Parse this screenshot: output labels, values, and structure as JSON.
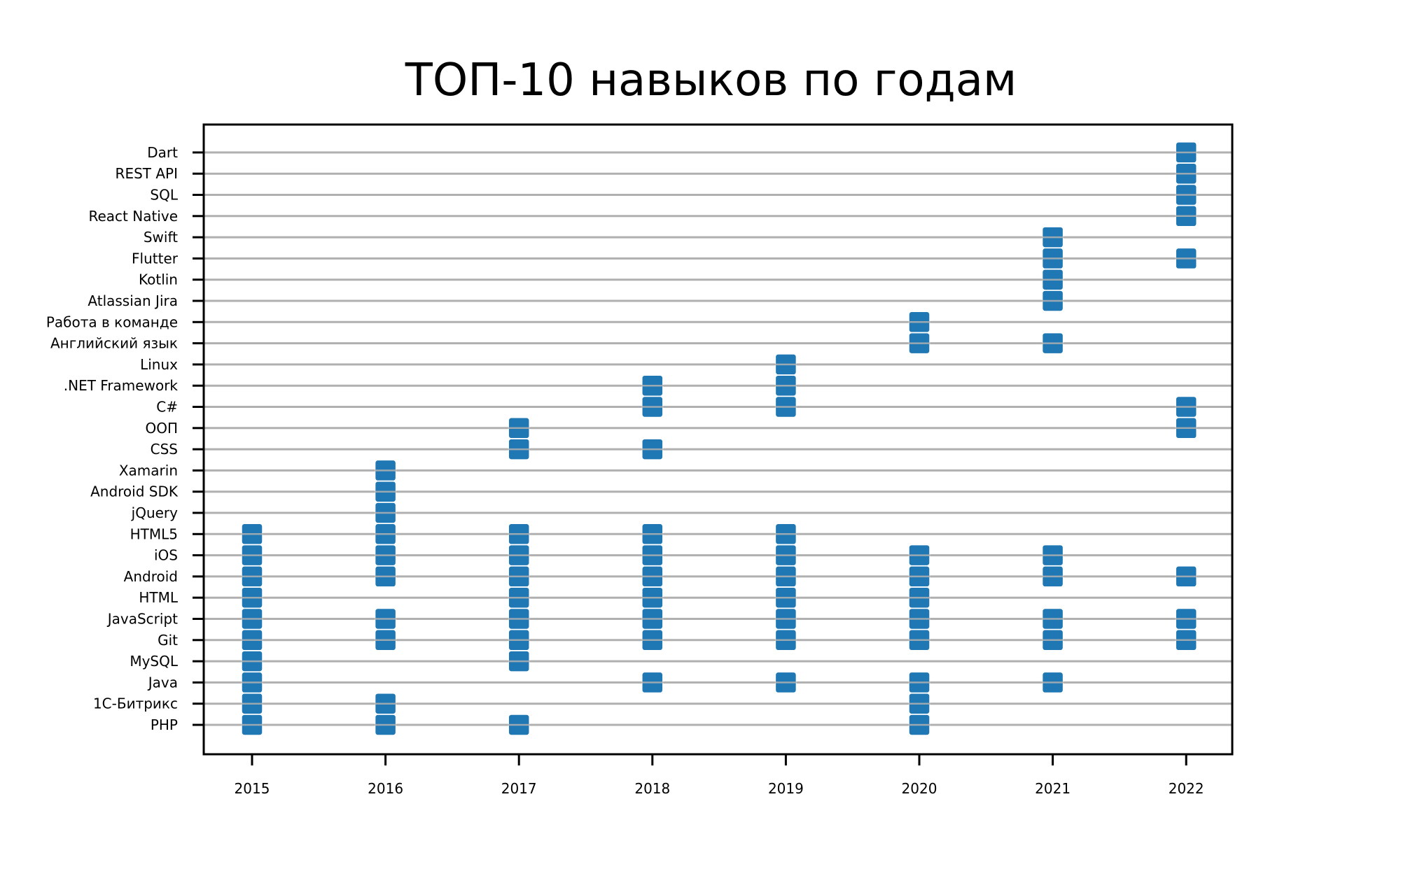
{
  "chart_data": {
    "type": "scatter",
    "title": "ТОП-10 навыков по годам",
    "xlabel": "",
    "ylabel": "",
    "grid": "horizontal",
    "marker": "square",
    "colors": {
      "marker": "#1f77b4",
      "grid": "#b0b0b0",
      "axes": "#000000"
    },
    "x_ticks": [
      2015,
      2016,
      2017,
      2018,
      2019,
      2020,
      2021,
      2022
    ],
    "categories": [
      "PHP",
      "1С-Битрикс",
      "Java",
      "MySQL",
      "Git",
      "JavaScript",
      "HTML",
      "Android",
      "iOS",
      "HTML5",
      "jQuery",
      "Android SDK",
      "Xamarin",
      "CSS",
      "ООП",
      "C#",
      ".NET Framework",
      "Linux",
      "Английский язык",
      "Работа в команде",
      "Atlassian Jira",
      "Kotlin",
      "Flutter",
      "Swift",
      "React Native",
      "SQL",
      "REST API",
      "Dart"
    ],
    "points": [
      {
        "year": 2015,
        "skills": [
          "PHP",
          "1С-Битрикс",
          "Java",
          "MySQL",
          "Git",
          "JavaScript",
          "HTML",
          "Android",
          "iOS",
          "HTML5"
        ]
      },
      {
        "year": 2016,
        "skills": [
          "PHP",
          "1С-Битрикс",
          "Git",
          "JavaScript",
          "Android",
          "iOS",
          "HTML5",
          "jQuery",
          "Android SDK",
          "Xamarin"
        ]
      },
      {
        "year": 2017,
        "skills": [
          "PHP",
          "MySQL",
          "Git",
          "JavaScript",
          "HTML",
          "Android",
          "iOS",
          "HTML5",
          "CSS",
          "ООП"
        ]
      },
      {
        "year": 2018,
        "skills": [
          "Java",
          "Git",
          "JavaScript",
          "HTML",
          "Android",
          "iOS",
          "HTML5",
          "CSS",
          "C#",
          ".NET Framework"
        ]
      },
      {
        "year": 2019,
        "skills": [
          "Java",
          "Git",
          "JavaScript",
          "HTML",
          "Android",
          "iOS",
          "HTML5",
          "C#",
          ".NET Framework",
          "Linux"
        ]
      },
      {
        "year": 2020,
        "skills": [
          "PHP",
          "1С-Битрикс",
          "Java",
          "Git",
          "JavaScript",
          "HTML",
          "Android",
          "iOS",
          "Английский язык",
          "Работа в команде"
        ]
      },
      {
        "year": 2021,
        "skills": [
          "Java",
          "Git",
          "JavaScript",
          "Android",
          "iOS",
          "Английский язык",
          "Atlassian Jira",
          "Kotlin",
          "Flutter",
          "Swift"
        ]
      },
      {
        "year": 2022,
        "skills": [
          "Git",
          "JavaScript",
          "Android",
          "ООП",
          "C#",
          "Flutter",
          "React Native",
          "SQL",
          "REST API",
          "Dart"
        ]
      }
    ]
  }
}
